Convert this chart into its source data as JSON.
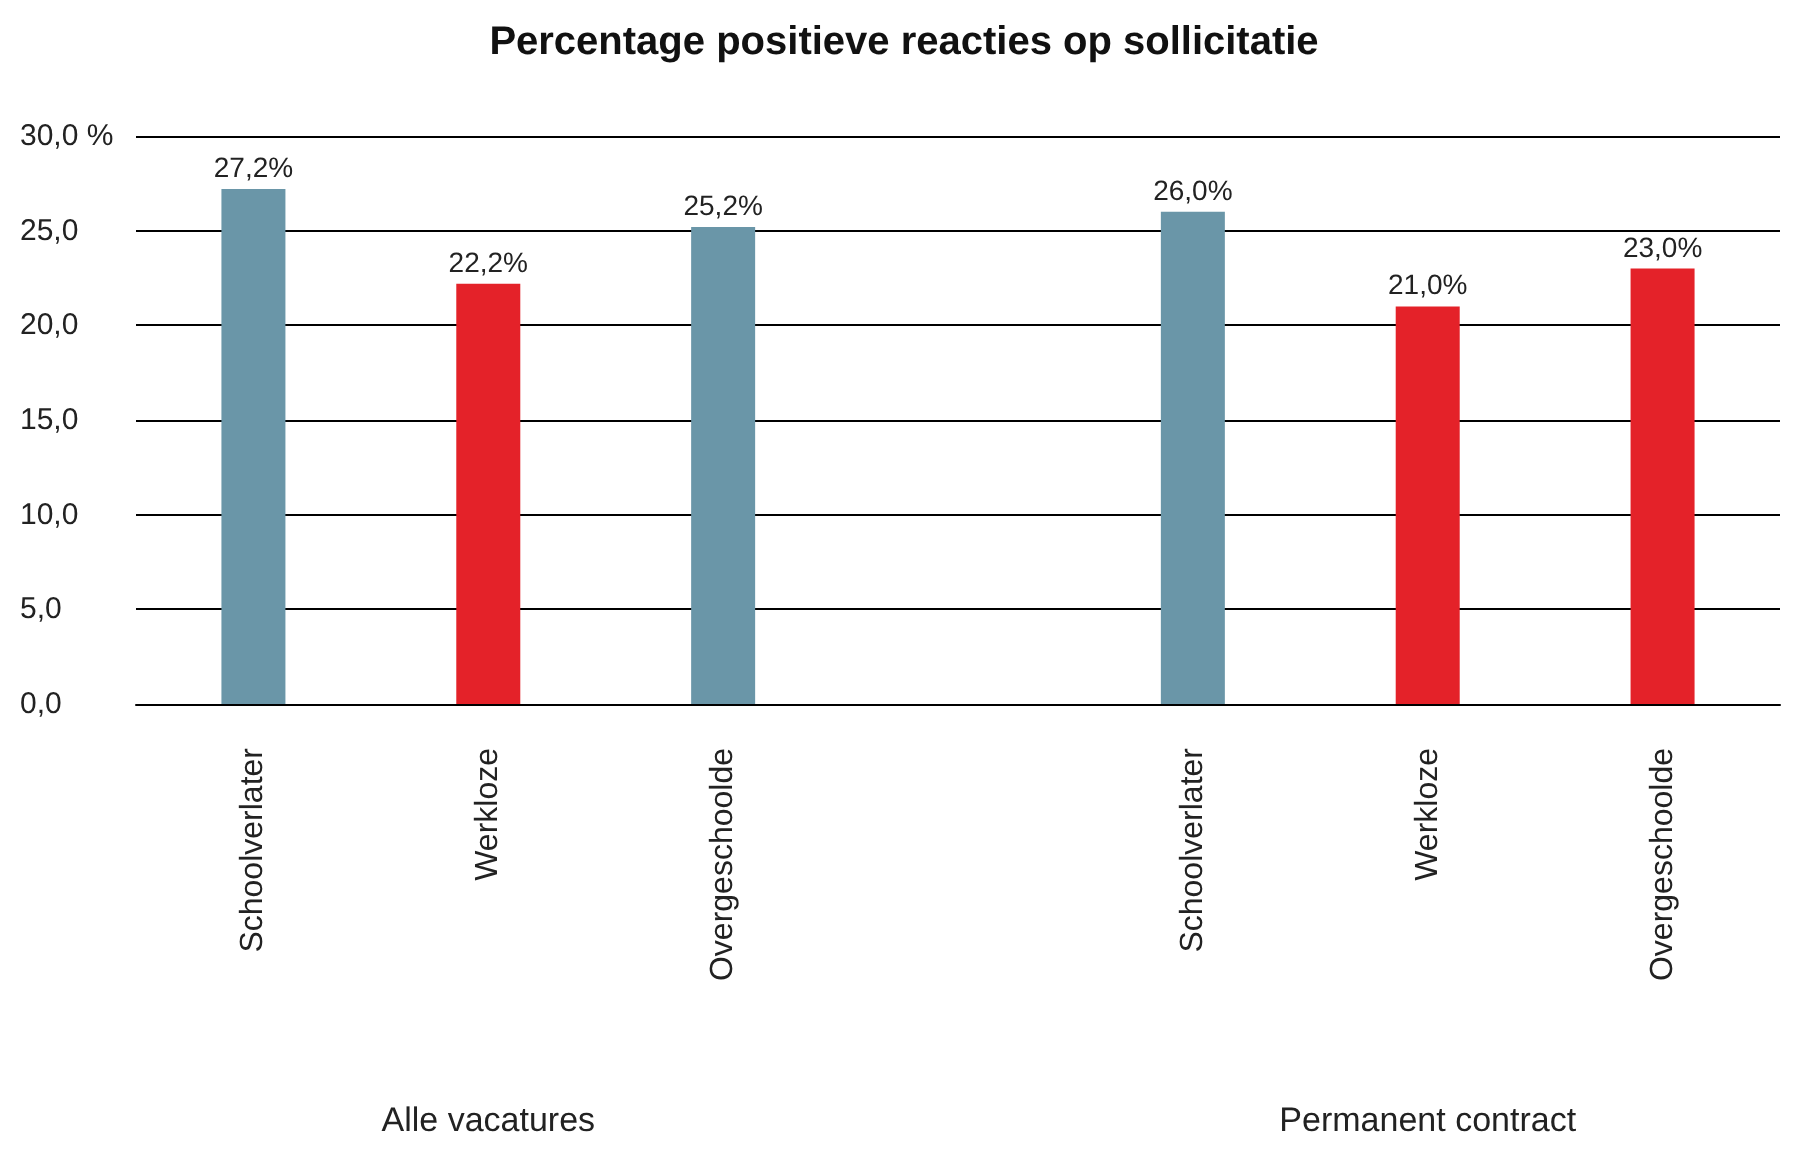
{
  "chart_data": {
    "type": "bar",
    "title": "Percentage positieve reacties op sollicitatie",
    "categories": [
      "Schoolverlater",
      "Werkloze",
      "Overgeschoolde",
      null,
      "Schoolverlater",
      "Werkloze",
      "Overgeschoolde"
    ],
    "values": [
      27.2,
      22.2,
      25.2,
      null,
      26.0,
      21.0,
      23.0
    ],
    "colors": [
      "#6a96a8",
      "#e42229",
      "#6a96a8",
      "#6a96a8",
      "#6a96a8",
      "#e42229",
      "#e42229"
    ],
    "value_labels": [
      "27,2%",
      "22,2%",
      "25,2%",
      null,
      "26,0%",
      "21,0%",
      "23,0%"
    ],
    "ylim": [
      0,
      30
    ],
    "yticks": [
      {
        "value": 0,
        "label": "0,0"
      },
      {
        "value": 5,
        "label": "5,0"
      },
      {
        "value": 10,
        "label": "10,0"
      },
      {
        "value": 15,
        "label": "15,0"
      },
      {
        "value": 20,
        "label": "20,0"
      },
      {
        "value": 25,
        "label": "25,0"
      },
      {
        "value": 30,
        "label": "30,0 %"
      }
    ],
    "annotations": [
      "Alle vacatures",
      "Permanent contract"
    ],
    "grid": "y"
  }
}
